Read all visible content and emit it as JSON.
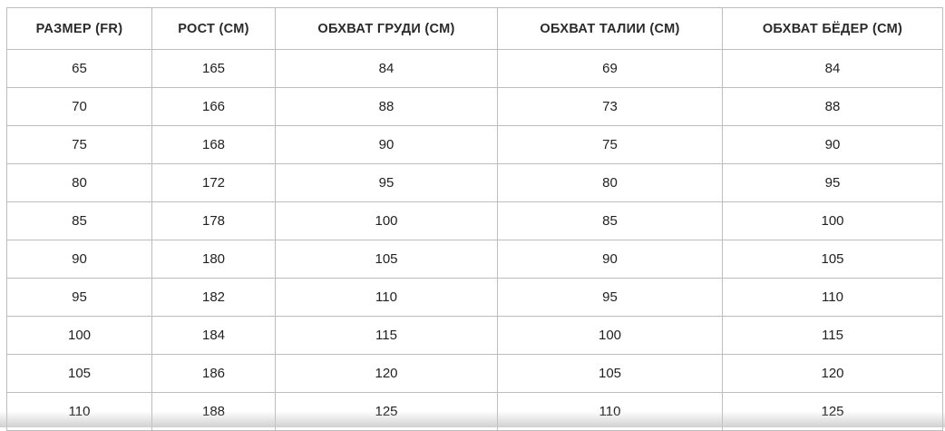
{
  "table": {
    "headers": [
      "РАЗМЕР (FR)",
      "РОСТ (СМ)",
      "ОБХВАТ ГРУДИ (СМ)",
      "ОБХВАТ ТАЛИИ (СМ)",
      "ОБХВАТ БЁДЕР (СМ)"
    ],
    "rows": [
      [
        "65",
        "165",
        "84",
        "69",
        "84"
      ],
      [
        "70",
        "166",
        "88",
        "73",
        "88"
      ],
      [
        "75",
        "168",
        "90",
        "75",
        "90"
      ],
      [
        "80",
        "172",
        "95",
        "80",
        "95"
      ],
      [
        "85",
        "178",
        "100",
        "85",
        "100"
      ],
      [
        "90",
        "180",
        "105",
        "90",
        "105"
      ],
      [
        "95",
        "182",
        "110",
        "95",
        "110"
      ],
      [
        "100",
        "184",
        "115",
        "100",
        "115"
      ],
      [
        "105",
        "186",
        "120",
        "105",
        "120"
      ],
      [
        "110",
        "188",
        "125",
        "110",
        "125"
      ]
    ]
  }
}
